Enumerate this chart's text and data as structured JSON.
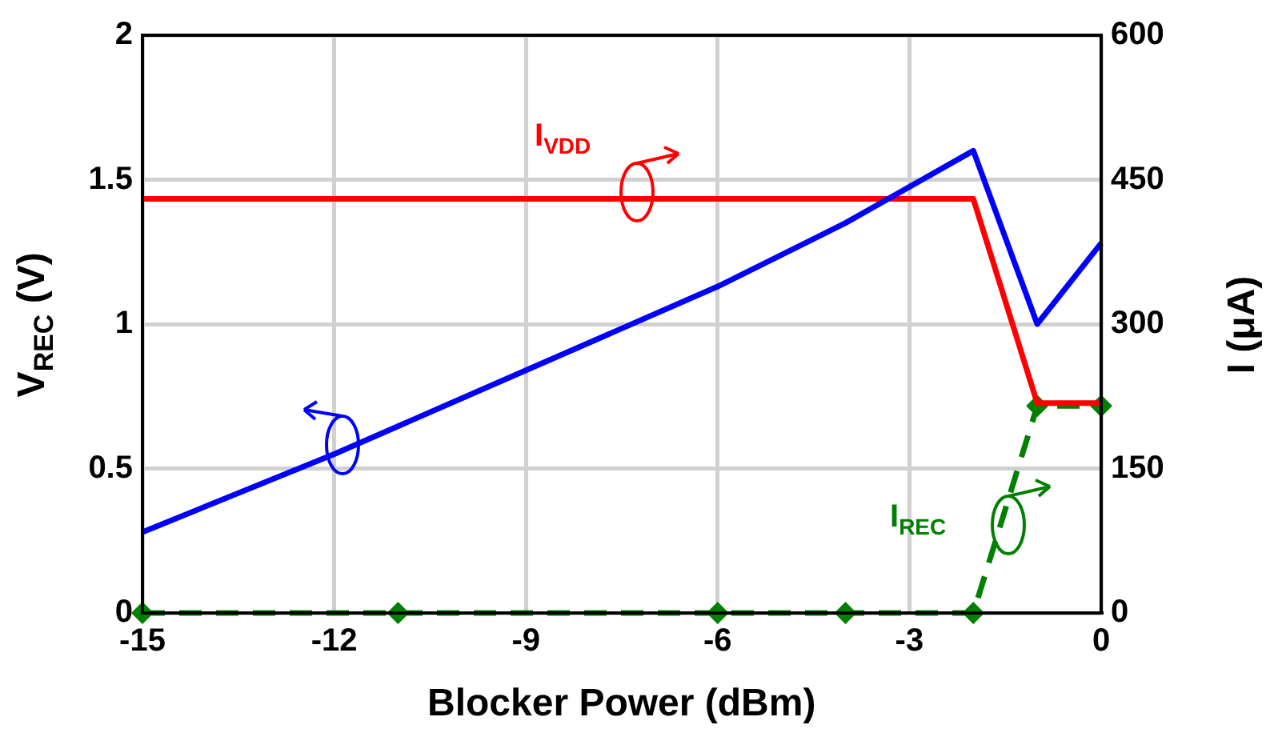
{
  "chart_data": {
    "type": "line",
    "xlabel": "Blocker Power (dBm)",
    "ylabel": "V$_{REC}$ (V)",
    "y2label": "I (μA)",
    "xlim": [
      -15,
      0
    ],
    "xticks": [
      -15,
      -12,
      -9,
      -6,
      -3,
      0
    ],
    "ylim": [
      0,
      2
    ],
    "yticks": [
      0,
      0.5,
      1,
      1.5,
      2
    ],
    "y2lim": [
      0,
      600
    ],
    "y2ticks": [
      0,
      150,
      300,
      450,
      600
    ],
    "grid": true,
    "legend": false,
    "series": [
      {
        "color": "#0000ff",
        "x": [
          -15,
          -12,
          -9,
          -6,
          -4,
          -2,
          -1,
          0
        ],
        "values": [
          0.28,
          0.55,
          0.84,
          1.13,
          1.35,
          1.6,
          1.0,
          1.28
        ],
        "marker": "none",
        "line_style": "solid"
      },
      {
        "color": "#ff0000",
        "axis": "y2",
        "x": [
          -15,
          -2,
          -1,
          0
        ],
        "values": [
          430,
          430,
          218,
          218
        ],
        "marker": "none",
        "line_style": "solid"
      },
      {
        "color": "#008000",
        "axis": "y2",
        "x": [
          -15,
          -11,
          -6,
          -4,
          -2,
          -1,
          0
        ],
        "values": [
          0,
          0,
          0,
          0,
          0,
          215,
          215
        ],
        "marker": "diamond",
        "line_style": "dashed"
      }
    ],
    "annotations": [
      "I$_{VDD}$",
      "I$_{REC}$"
    ]
  }
}
